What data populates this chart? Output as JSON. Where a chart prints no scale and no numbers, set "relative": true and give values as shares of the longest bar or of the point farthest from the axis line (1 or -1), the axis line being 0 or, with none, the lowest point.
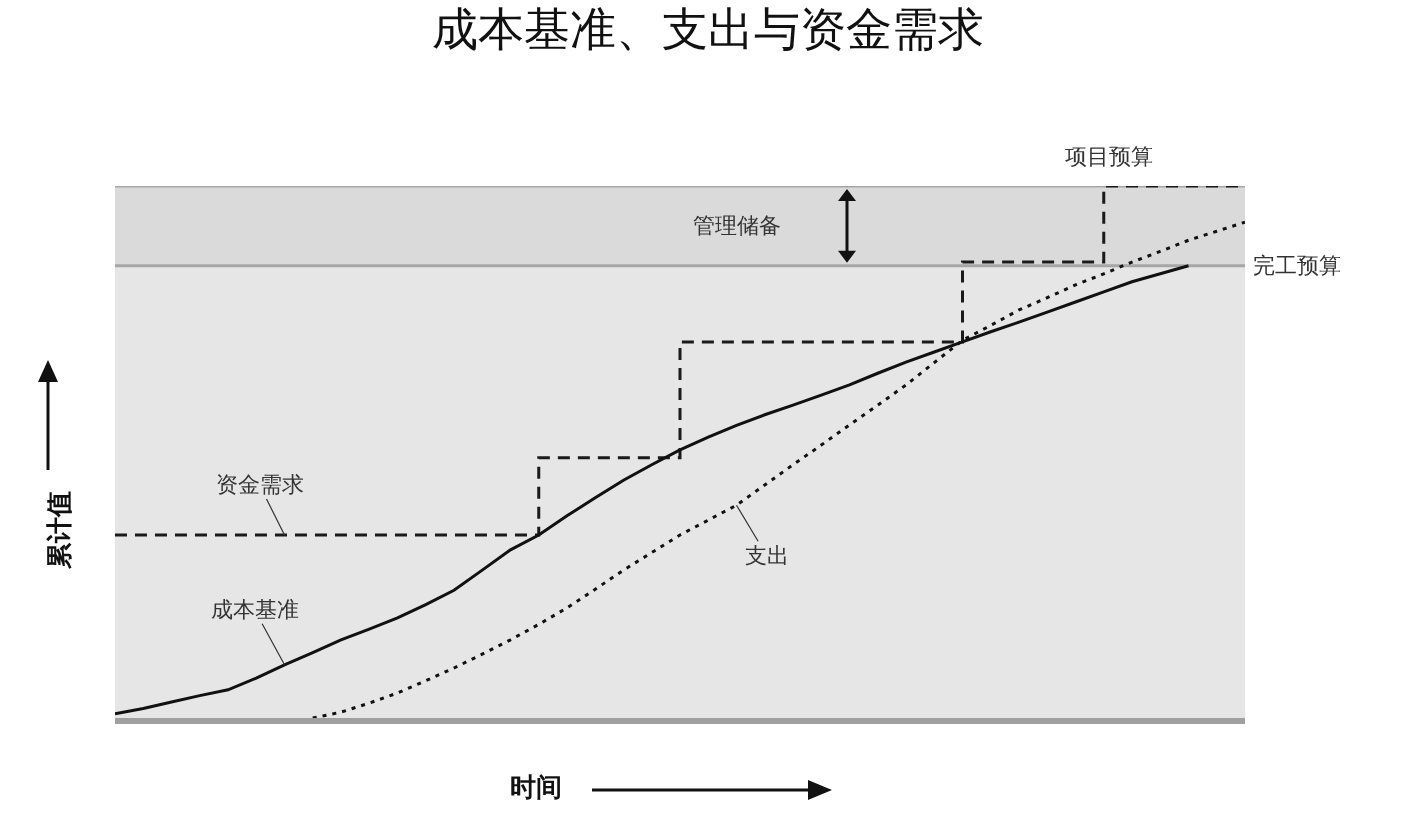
{
  "chart_data": {
    "type": "line",
    "title": "成本基准、支出与资金需求",
    "xlabel": "时间",
    "ylabel": "累计值",
    "relative": true,
    "legend": false,
    "categories": [
      null,
      null,
      null,
      null,
      null,
      null,
      null,
      null,
      null,
      null,
      null,
      null,
      null,
      null,
      null,
      null,
      null,
      null,
      null,
      null,
      null,
      null,
      null,
      null,
      null,
      null,
      null,
      null,
      null,
      null,
      null,
      null,
      null,
      null,
      null,
      null,
      null,
      null,
      null,
      null,
      null
    ],
    "series": [
      {
        "name": "资金需求",
        "type": "step",
        "color": "#1a1a1a",
        "line_style": "dashed",
        "values": [
          0.344,
          0.344,
          0.344,
          0.344,
          0.344,
          0.344,
          0.344,
          0.344,
          0.344,
          0.344,
          0.344,
          0.344,
          0.344,
          0.344,
          0.344,
          0.489,
          0.489,
          0.489,
          0.489,
          0.489,
          0.707,
          0.707,
          0.707,
          0.707,
          0.707,
          0.707,
          0.707,
          0.707,
          0.707,
          0.707,
          0.857,
          0.857,
          0.857,
          0.857,
          0.857,
          1,
          1,
          1,
          1,
          1,
          1
        ]
      },
      {
        "name": "成本基准",
        "type": "line",
        "color": "#111111",
        "line_style": "solid",
        "values": [
          0.008,
          0.018,
          0.03,
          0.042,
          0.053,
          0.075,
          0.1,
          0.123,
          0.147,
          0.167,
          0.188,
          0.213,
          0.24,
          0.278,
          0.316,
          0.344,
          0.38,
          0.414,
          0.447,
          0.476,
          0.504,
          0.528,
          0.55,
          0.57,
          0.588,
          0.607,
          0.626,
          0.648,
          0.669,
          0.688,
          0.707,
          0.726,
          0.744,
          0.763,
          0.782,
          0.801,
          0.82,
          0.835,
          0.85,
          null,
          null
        ]
      },
      {
        "name": "支出",
        "type": "line",
        "color": "#111111",
        "line_style": "dotted",
        "values": [
          null,
          null,
          null,
          null,
          null,
          null,
          null,
          0,
          0.011,
          0.028,
          0.047,
          0.07,
          0.094,
          0.12,
          0.147,
          0.176,
          0.207,
          0.242,
          0.278,
          0.311,
          0.344,
          0.372,
          0.4,
          0.438,
          0.476,
          0.513,
          0.551,
          0.588,
          0.626,
          0.668,
          0.71,
          0.738,
          0.767,
          0.79,
          0.814,
          0.835,
          0.857,
          0.877,
          0.898,
          0.915,
          0.932
        ]
      }
    ],
    "ref_lines": [
      {
        "axis": "y",
        "value": 0.85,
        "label": "完工预算",
        "color": "#a6a6a6"
      },
      {
        "axis": "y",
        "value": 1,
        "label": "项目预算",
        "color": "#a6a6a6"
      }
    ],
    "bands": [
      {
        "axis": "y",
        "from": 0.85,
        "to": 1,
        "label": "管理储备",
        "color": "#dadada"
      }
    ]
  }
}
